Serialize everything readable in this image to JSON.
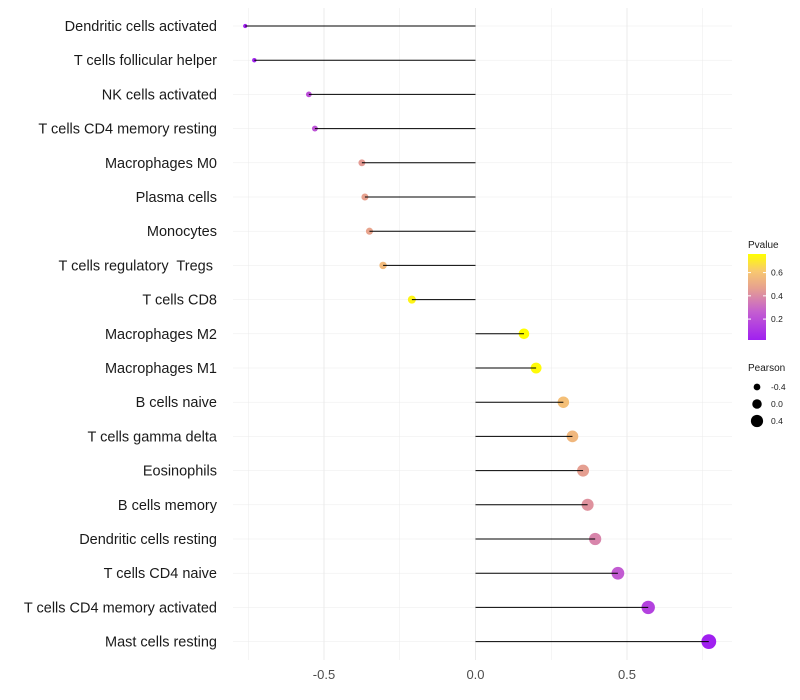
{
  "chart_data": {
    "type": "lollipop",
    "categories": [
      "Dendritic cells activated",
      "T cells follicular helper",
      "NK cells activated",
      "T cells CD4 memory resting",
      "Macrophages M0",
      "Plasma cells",
      "Monocytes",
      "T cells regulatory  Tregs ",
      "T cells CD8",
      "Macrophages M2",
      "Macrophages M1",
      "B cells naive",
      "T cells gamma delta",
      "Eosinophils",
      "B cells memory",
      "Dendritic cells resting",
      "T cells CD4 naive",
      "T cells CD4 memory activated",
      "Mast cells resting"
    ],
    "pearson": [
      -0.76,
      -0.73,
      -0.55,
      -0.53,
      -0.375,
      -0.365,
      -0.35,
      -0.305,
      -0.21,
      0.16,
      0.2,
      0.29,
      0.32,
      0.355,
      0.37,
      0.395,
      0.47,
      0.57,
      0.77
    ],
    "pvalue": [
      0.02,
      0.03,
      0.2,
      0.22,
      0.45,
      0.47,
      0.48,
      0.56,
      0.73,
      0.76,
      0.75,
      0.58,
      0.55,
      0.46,
      0.42,
      0.38,
      0.25,
      0.15,
      0.02
    ],
    "xlabel": "",
    "ylabel": "",
    "xlim": [
      -0.83,
      0.85
    ],
    "xticks": [
      -0.5,
      0.0,
      0.5
    ],
    "xtick_labels": [
      "-0.5",
      "0.0",
      "0.5"
    ],
    "grid": true,
    "legend_color": {
      "title": "Pvalue",
      "range": [
        0.02,
        0.76
      ],
      "ticks": [
        0.2,
        0.4,
        0.6
      ],
      "tick_labels": [
        "0.2",
        "0.4",
        "0.6"
      ],
      "colors": [
        "#a020f0",
        "#ffff00"
      ]
    },
    "legend_size": {
      "title": "Pearson",
      "values": [
        -0.4,
        0.0,
        0.4
      ],
      "labels": [
        "-0.4",
        "0.0",
        "0.4"
      ]
    },
    "colors": {
      "segment": "#000000",
      "grid": "#ebebeb",
      "low": "#a020f0",
      "high": "#ffff00"
    }
  }
}
